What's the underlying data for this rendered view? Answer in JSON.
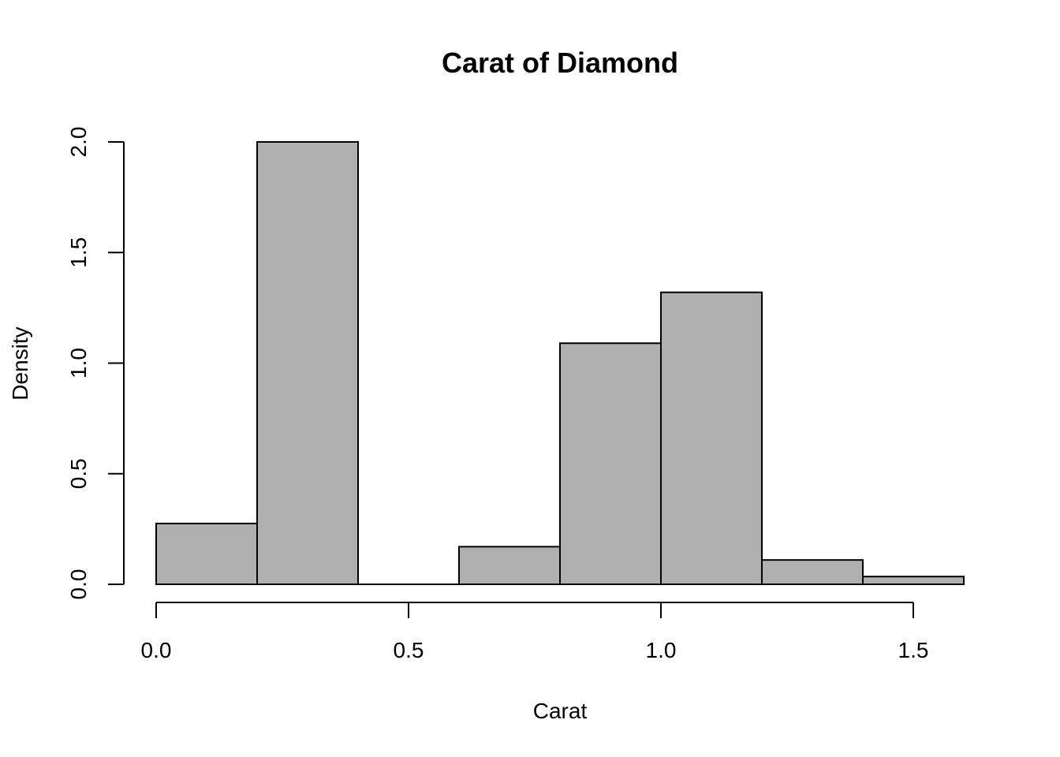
{
  "chart_data": {
    "type": "bar",
    "subtype": "histogram",
    "title": "Carat of Diamond",
    "xlabel": "Carat",
    "ylabel": "Density",
    "xlim": [
      0.0,
      1.6
    ],
    "ylim": [
      0.0,
      2.0
    ],
    "bin_width": 0.2,
    "bins": [
      {
        "x0": 0.0,
        "x1": 0.2,
        "value": 0.275
      },
      {
        "x0": 0.2,
        "x1": 0.4,
        "value": 2.0
      },
      {
        "x0": 0.4,
        "x1": 0.6,
        "value": 0.0
      },
      {
        "x0": 0.6,
        "x1": 0.8,
        "value": 0.17
      },
      {
        "x0": 0.8,
        "x1": 1.0,
        "value": 1.09
      },
      {
        "x0": 1.0,
        "x1": 1.2,
        "value": 1.32
      },
      {
        "x0": 1.2,
        "x1": 1.4,
        "value": 0.11
      },
      {
        "x0": 1.4,
        "x1": 1.6,
        "value": 0.035
      }
    ],
    "x_ticks": [
      {
        "value": 0.0,
        "label": "0.0"
      },
      {
        "value": 0.5,
        "label": "0.5"
      },
      {
        "value": 1.0,
        "label": "1.0"
      },
      {
        "value": 1.5,
        "label": "1.5"
      }
    ],
    "y_ticks": [
      {
        "value": 0.0,
        "label": "0.0"
      },
      {
        "value": 0.5,
        "label": "0.5"
      },
      {
        "value": 1.0,
        "label": "1.0"
      },
      {
        "value": 1.5,
        "label": "1.5"
      },
      {
        "value": 2.0,
        "label": "2.0"
      }
    ],
    "bar_color": "#b0b0b0",
    "edge_color": "#000000",
    "grid": false,
    "legend": "none"
  }
}
